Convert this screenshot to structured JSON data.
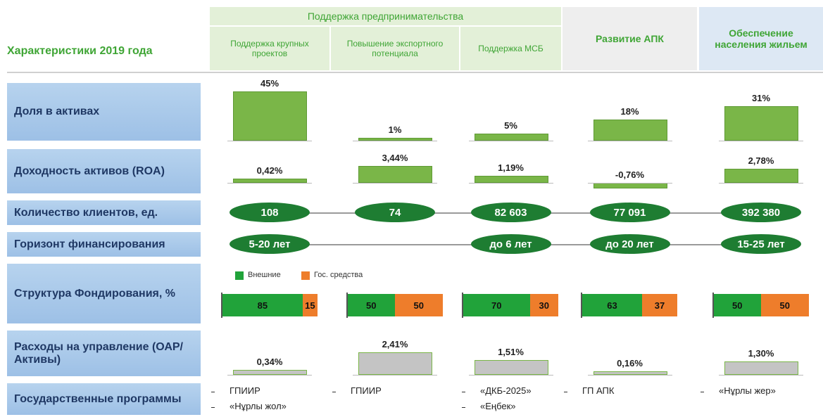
{
  "header": {
    "title": "Характеристики 2019 года",
    "group": "Поддержка предпринимательства",
    "columns": [
      "Поддержка крупных проектов",
      "Повышение экспортного потенциала",
      "Поддержка МСБ",
      "Развитие АПК",
      "Обеспечение населения жильем"
    ]
  },
  "rows": {
    "assets": {
      "label": "Доля в активах",
      "values": [
        45,
        1,
        5,
        18,
        31
      ],
      "value_labels": [
        "45%",
        "1%",
        "5%",
        "18%",
        "31%"
      ]
    },
    "roa": {
      "label": "Доходность активов (ROA)",
      "values": [
        0.42,
        3.44,
        1.19,
        -0.76,
        2.78
      ],
      "value_labels": [
        "0,42%",
        "3,44%",
        "1,19%",
        "-0,76%",
        "2,78%"
      ]
    },
    "clients": {
      "label": "Количество клиентов, ед.",
      "values": [
        "108",
        "74",
        "82 603",
        "77 091",
        "392 380"
      ]
    },
    "horizon": {
      "label": "Горизонт финансирования",
      "values": [
        "5-20 лет",
        null,
        "до 6 лет",
        "до 20 лет",
        "15-25 лет"
      ]
    },
    "funding": {
      "label": "Структура Фондирования, %",
      "legend": [
        "Внешние",
        "Гос. средства"
      ],
      "colors": [
        "#21a33a",
        "#ee7d2b"
      ],
      "external": [
        85,
        50,
        70,
        63,
        50
      ],
      "state": [
        15,
        50,
        30,
        37,
        50
      ]
    },
    "expenses": {
      "label": "Расходы на управление (ОАР/Активы)",
      "values": [
        0.34,
        2.41,
        1.51,
        0.16,
        1.3
      ],
      "value_labels": [
        "0,34%",
        "2,41%",
        "1,51%",
        "0,16%",
        "1,30%"
      ]
    },
    "programs": {
      "label": "Государственные программы",
      "values": [
        [
          "ГПИИР",
          "«Нұрлы жол»"
        ],
        [
          "ГПИИР"
        ],
        [
          "«ДКБ-2025»",
          "«Еңбек»"
        ],
        [
          "ГП АПК"
        ],
        [
          "«Нұрлы жер»"
        ]
      ]
    }
  }
}
